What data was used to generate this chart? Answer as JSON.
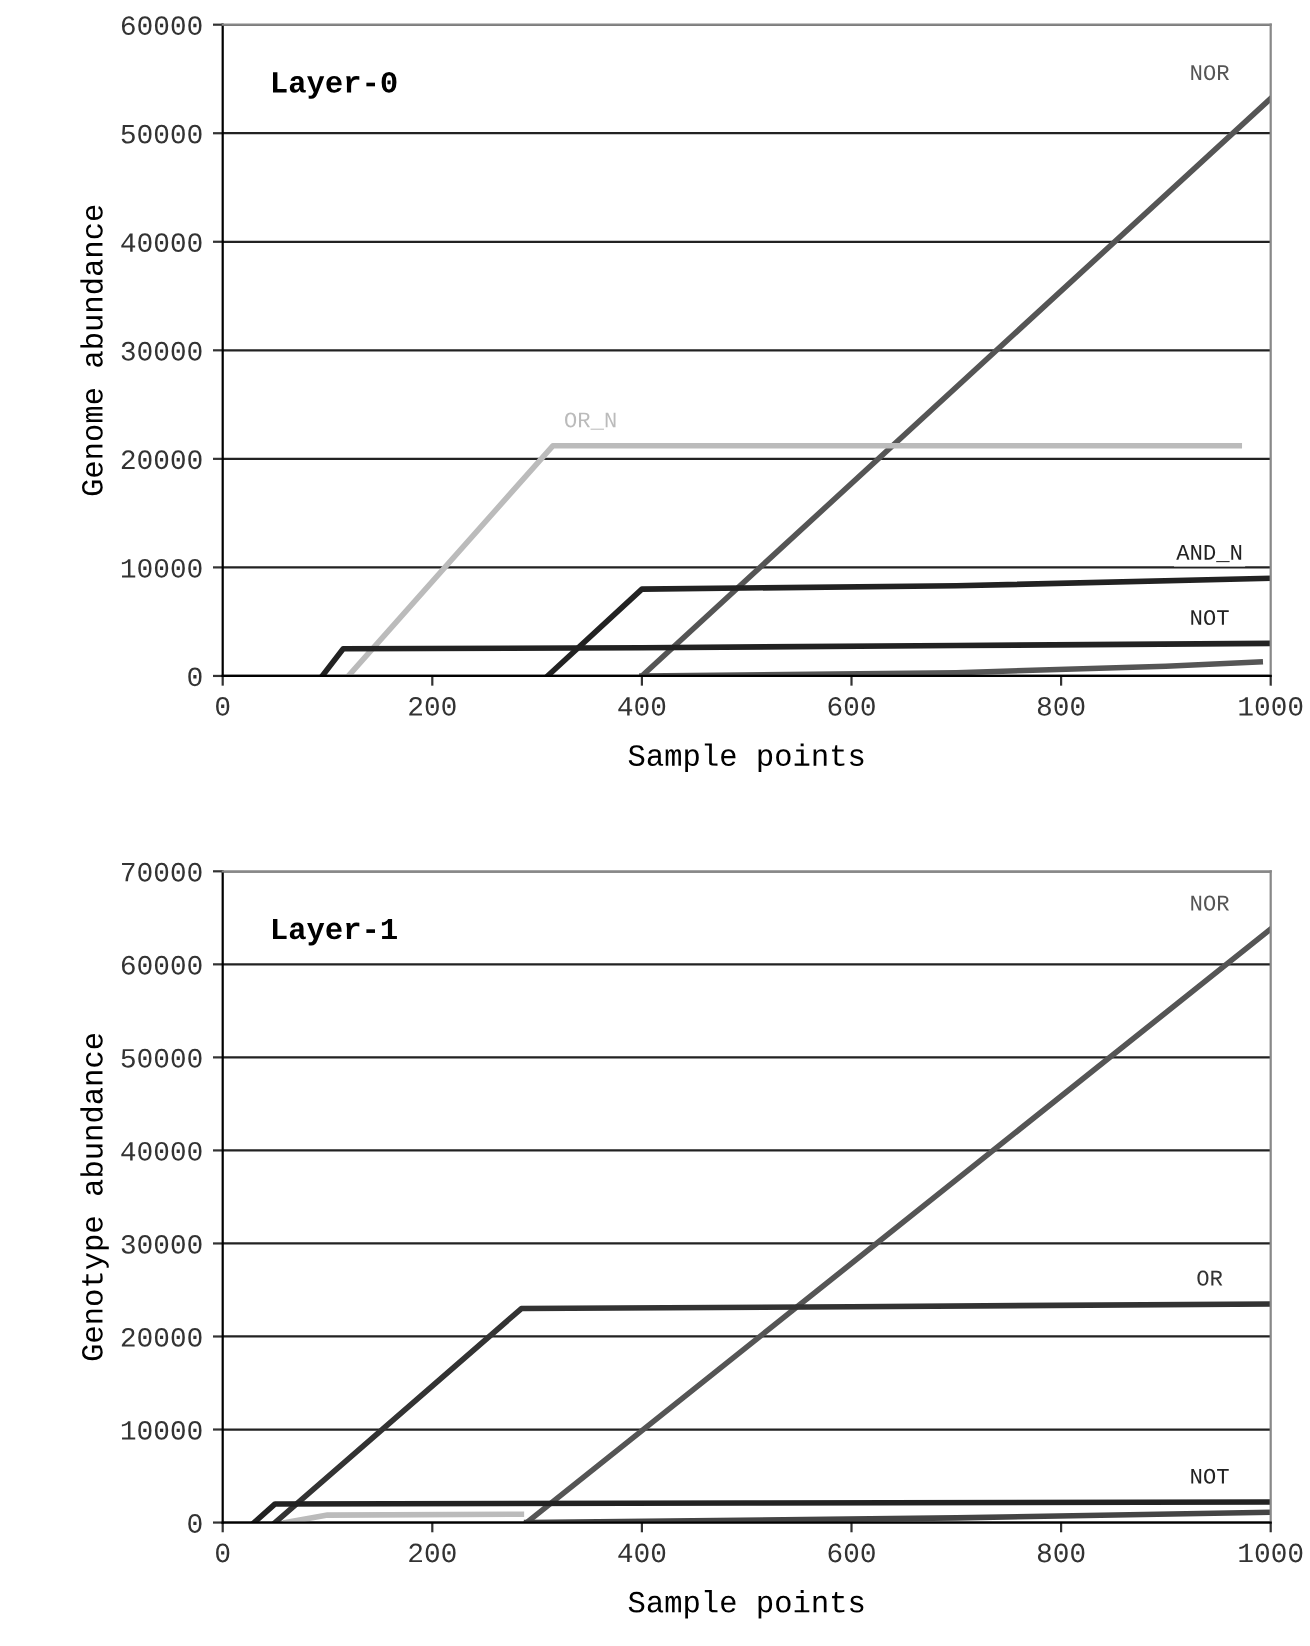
{
  "chart_data": [
    {
      "type": "line",
      "title": "Layer-0",
      "xlabel": "Sample points",
      "ylabel": "Genome abundance",
      "xlim": [
        0,
        1000
      ],
      "ylim": [
        0,
        60000
      ],
      "xticks": [
        0,
        200,
        400,
        600,
        800,
        1000
      ],
      "yticks": [
        0,
        10000,
        20000,
        30000,
        40000,
        50000,
        60000
      ],
      "grid": "y",
      "legend": false,
      "marker": "none",
      "line_style": "solid",
      "series": [
        {
          "name": "NOR",
          "color": "#555555",
          "x": [
            400,
            1000
          ],
          "values": [
            0,
            53200
          ]
        },
        {
          "name": "OR_N",
          "color": "#bbbbbb",
          "x": [
            120,
            315,
            970
          ],
          "values": [
            0,
            21200,
            21200
          ]
        },
        {
          "name": "AND_N",
          "color": "#222222",
          "x": [
            310,
            400,
            700,
            1000
          ],
          "values": [
            0,
            8000,
            8300,
            9000
          ]
        },
        {
          "name": "NOT",
          "color": "#222222",
          "x": [
            95,
            115,
            400,
            700,
            1000
          ],
          "values": [
            0,
            2500,
            2600,
            2800,
            3000
          ]
        },
        {
          "color": "#555555",
          "x": [
            400,
            700,
            900,
            990
          ],
          "values": [
            0,
            300,
            900,
            1300
          ]
        }
      ]
    },
    {
      "type": "line",
      "title": "Layer-1",
      "xlabel": "Sample points",
      "ylabel": "Genotype abundance",
      "xlim": [
        0,
        1000
      ],
      "ylim": [
        0,
        70000
      ],
      "xticks": [
        0,
        200,
        400,
        600,
        800,
        1000
      ],
      "yticks": [
        0,
        10000,
        20000,
        30000,
        40000,
        50000,
        60000,
        70000
      ],
      "grid": "y",
      "legend": false,
      "marker": "none",
      "line_style": "solid",
      "series": [
        {
          "name": "NOR",
          "color": "#555555",
          "x": [
            290,
            1000
          ],
          "values": [
            0,
            63800
          ]
        },
        {
          "name": "OR",
          "color": "#333333",
          "x": [
            50,
            285,
            600,
            1000
          ],
          "values": [
            0,
            23000,
            23200,
            23500
          ]
        },
        {
          "name": "NOT",
          "color": "#222222",
          "x": [
            30,
            50,
            500,
            1000
          ],
          "values": [
            0,
            2000,
            2100,
            2200
          ]
        },
        {
          "color": "#bbbbbb",
          "x": [
            60,
            100,
            285
          ],
          "values": [
            0,
            800,
            900
          ]
        },
        {
          "color": "#444444",
          "x": [
            290,
            700,
            1000
          ],
          "values": [
            0,
            500,
            1100
          ]
        }
      ]
    }
  ]
}
